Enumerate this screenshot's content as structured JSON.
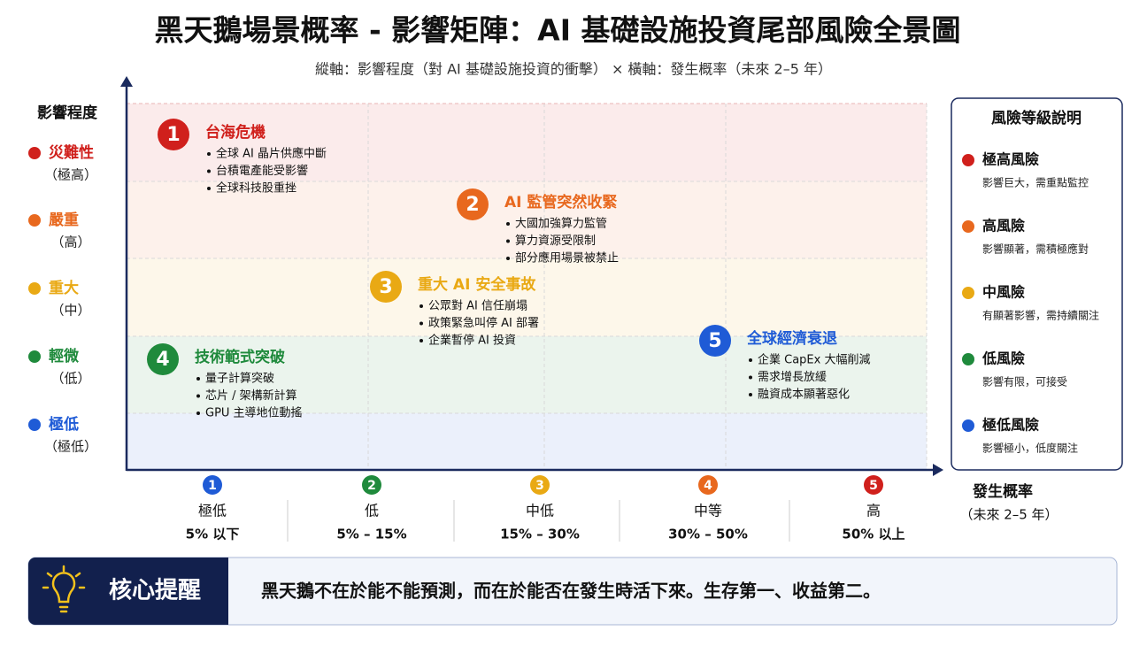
{
  "title": "黑天鵝場景概率 - 影響矩陣：AI 基礎設施投資尾部風險全景圖",
  "subtitle": "縱軸：影響程度（對 AI 基礎設施投資的衝擊） × 橫軸：發生概率（未來 2–5 年）",
  "y_axis": {
    "label": "影響程度",
    "levels": [
      {
        "name": "災難性",
        "sub": "（極高）",
        "color": "#d0201c"
      },
      {
        "name": "嚴重",
        "sub": "（高）",
        "color": "#e8681e"
      },
      {
        "name": "重大",
        "sub": "（中）",
        "color": "#e9a914"
      },
      {
        "name": "輕微",
        "sub": "（低）",
        "color": "#1f8a3c"
      },
      {
        "name": "極低",
        "sub": "（極低）",
        "color": "#1f5bd6"
      }
    ]
  },
  "risks": [
    {
      "number": "1",
      "title": "台海危機",
      "color": "#d0201c",
      "bullets": [
        "全球 AI 晶片供應中斷",
        "台積電產能受影響",
        "全球科技股重挫"
      ]
    },
    {
      "number": "2",
      "title": "AI 監管突然收緊",
      "color": "#e8681e",
      "bullets": [
        "大國加強算力監管",
        "算力資源受限制",
        "部分應用場景被禁止"
      ]
    },
    {
      "number": "3",
      "title": "重大 AI 安全事故",
      "color": "#e9a914",
      "bullets": [
        "公眾對 AI 信任崩塌",
        "政策緊急叫停 AI 部署",
        "企業暫停 AI 投資"
      ]
    },
    {
      "number": "4",
      "title": "技術範式突破",
      "color": "#1f8a3c",
      "bullets": [
        "量子計算突破",
        "芯片 / 架構新計算",
        "GPU 主導地位動搖"
      ]
    },
    {
      "number": "5",
      "title": "全球經濟衰退",
      "color": "#1f5bd6",
      "bullets": [
        "企業 CapEx 大幅削減",
        "需求增長放緩",
        "融資成本顯著惡化"
      ]
    }
  ],
  "x_axis": {
    "label": "發生概率",
    "sublabel": "（未來 2–5 年）",
    "categories": [
      {
        "number": "1",
        "name": "極低",
        "range": "5% 以下",
        "color": "#1f5bd6"
      },
      {
        "number": "2",
        "name": "低",
        "range": "5% – 15%",
        "color": "#1f8a3c"
      },
      {
        "number": "3",
        "name": "中低",
        "range": "15% – 30%",
        "color": "#e9a914"
      },
      {
        "number": "4",
        "name": "中等",
        "range": "30% – 50%",
        "color": "#e8681e"
      },
      {
        "number": "5",
        "name": "高",
        "range": "50% 以上",
        "color": "#d0201c"
      }
    ]
  },
  "legend": {
    "title": "風險等級說明",
    "items": [
      {
        "name": "極高風險",
        "desc": "影響巨大，需重點監控",
        "color": "#d0201c"
      },
      {
        "name": "高風險",
        "desc": "影響顯著，需積極應對",
        "color": "#e8681e"
      },
      {
        "name": "中風險",
        "desc": "有顯著影響，需持續關注",
        "color": "#e9a914"
      },
      {
        "name": "低風險",
        "desc": "影響有限，可接受",
        "color": "#1f8a3c"
      },
      {
        "name": "極低風險",
        "desc": "影響極小，低度關注",
        "color": "#1f5bd6"
      }
    ]
  },
  "callout": {
    "label": "核心提醒",
    "text": "黑天鵝不在於能不能預測，而在於能否在發生時活下來。生存第一、收益第二。"
  }
}
